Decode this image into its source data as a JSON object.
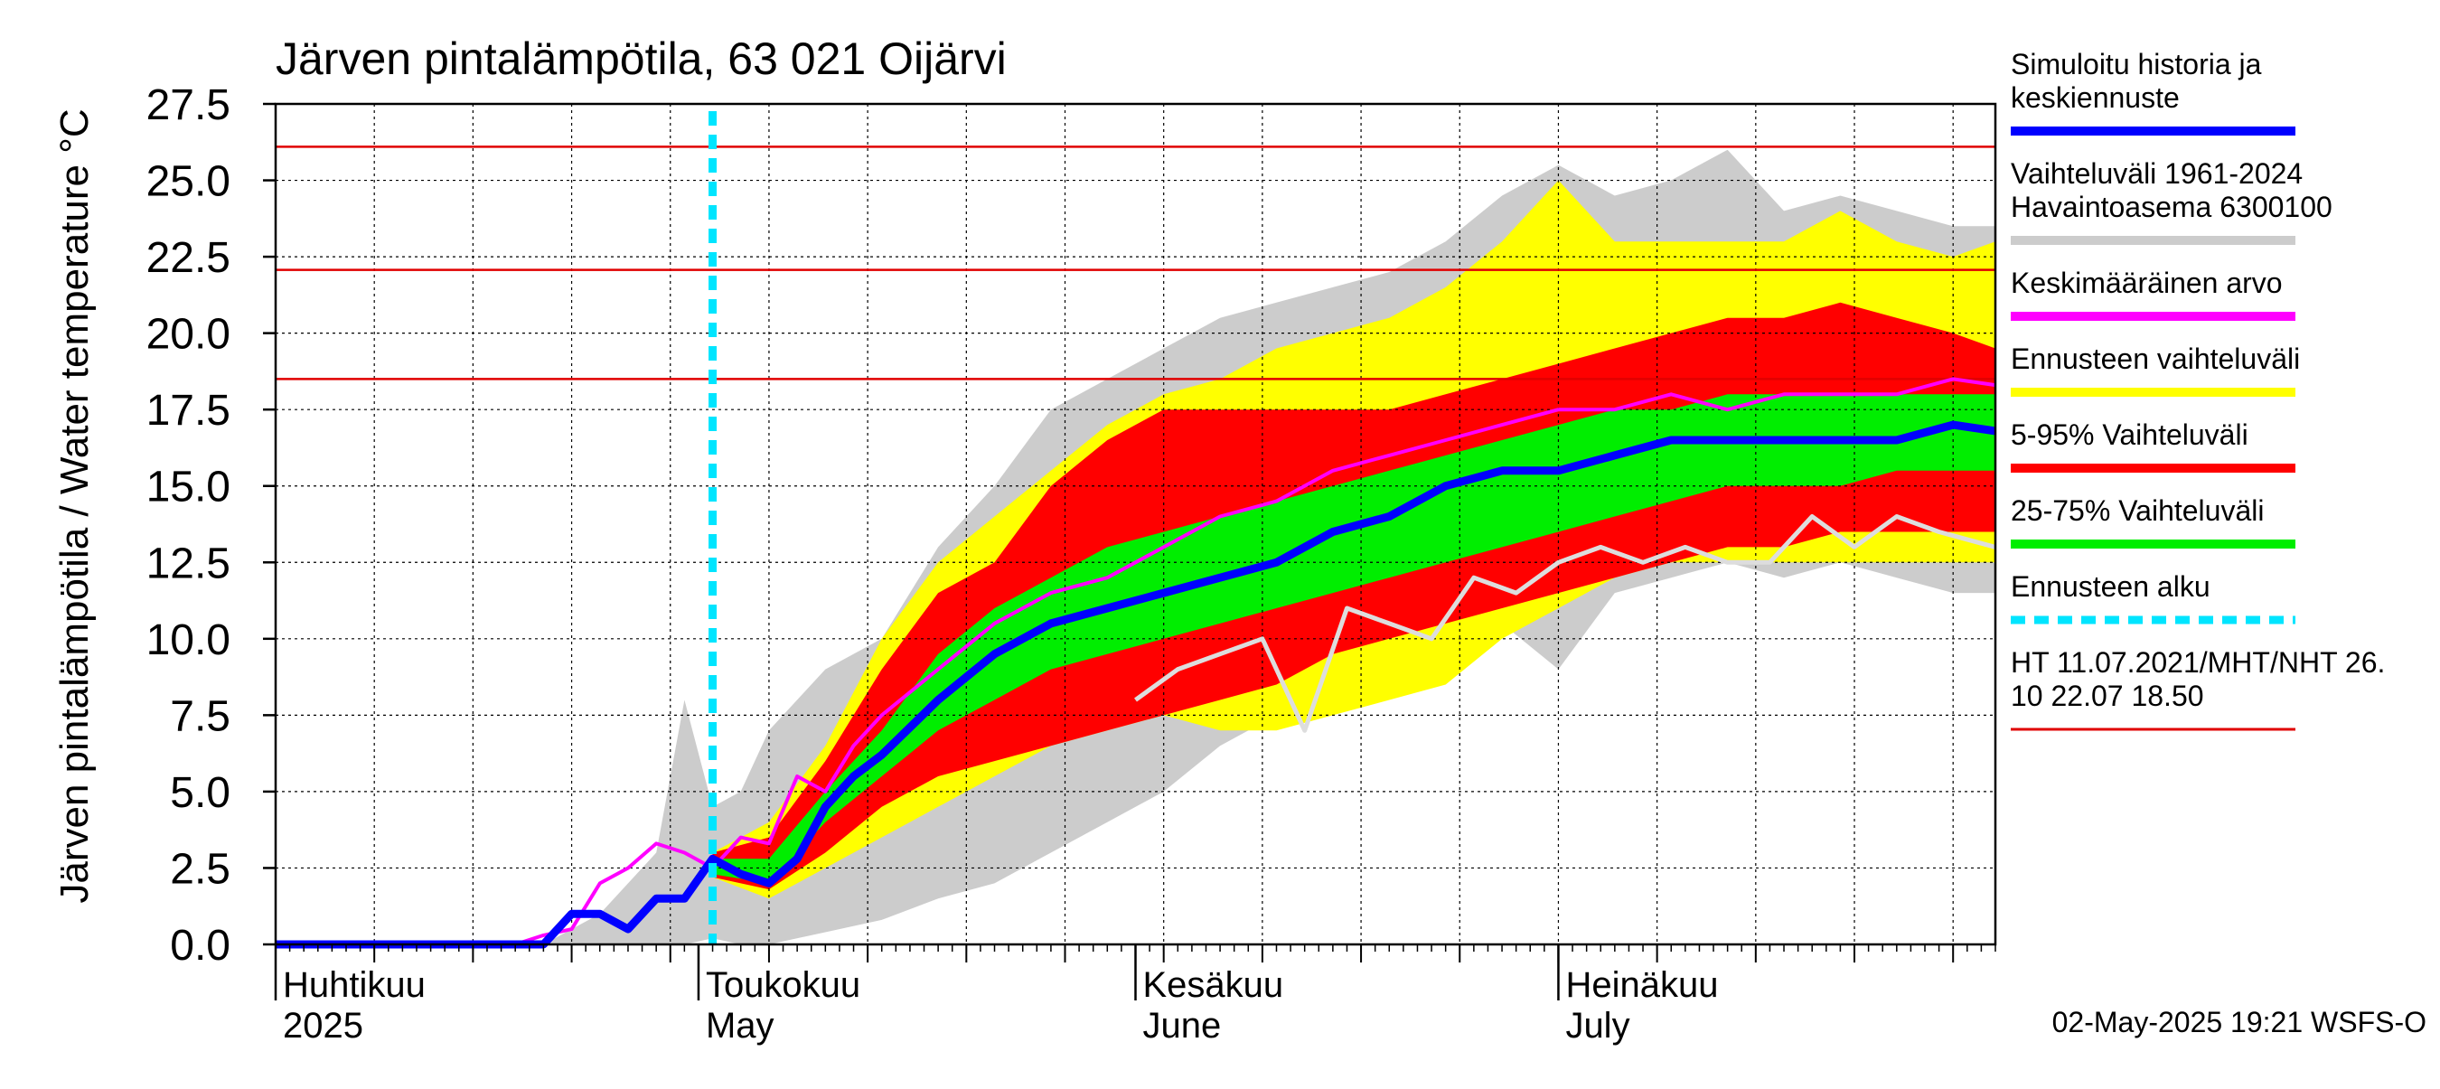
{
  "chart_data": {
    "type": "area",
    "title": "Järven pintalämpötila, 63 021 Oijärvi",
    "ylabel": "Järven pintalämpötila / Water temperature °C",
    "xlabel": "",
    "ylim": [
      0,
      27.5
    ],
    "xlim": [
      "2025-04-01",
      "2025-08-01"
    ],
    "grid": true,
    "legend_position": "right",
    "y_ticks": [
      "0.0",
      "2.5",
      "5.0",
      "7.5",
      "10.0",
      "12.5",
      "15.0",
      "17.5",
      "20.0",
      "22.5",
      "25.0",
      "27.5"
    ],
    "month_labels": [
      {
        "date": "2025-04-01",
        "fi": "Huhtikuu",
        "en": "2025"
      },
      {
        "date": "2025-05-01",
        "fi": "Toukokuu",
        "en": "May"
      },
      {
        "date": "2025-06-01",
        "fi": "Kesäkuu",
        "en": "June"
      },
      {
        "date": "2025-07-01",
        "fi": "Heinäkuu",
        "en": "July"
      }
    ],
    "forecast_start": "2025-05-02",
    "reference_lines": [
      {
        "value": 26.1,
        "color": "#e00000"
      },
      {
        "value": 22.07,
        "color": "#e00000"
      },
      {
        "value": 18.5,
        "color": "#e00000"
      }
    ],
    "bands": {
      "history_range": {
        "color": "#cccccc",
        "x": [
          "2025-04-20",
          "2025-04-24",
          "2025-04-28",
          "2025-04-30",
          "2025-05-02",
          "2025-05-04",
          "2025-05-06",
          "2025-05-10",
          "2025-05-14",
          "2025-05-18",
          "2025-05-22",
          "2025-05-26",
          "2025-05-30",
          "2025-06-03",
          "2025-06-07",
          "2025-06-11",
          "2025-06-15",
          "2025-06-19",
          "2025-06-23",
          "2025-06-27",
          "2025-07-01",
          "2025-07-05",
          "2025-07-09",
          "2025-07-13",
          "2025-07-17",
          "2025-07-21",
          "2025-07-25",
          "2025-07-29",
          "2025-08-01"
        ],
        "lower": [
          0.0,
          0.0,
          0.0,
          0.0,
          0.2,
          0.0,
          0.0,
          0.4,
          0.8,
          1.5,
          2.0,
          3.0,
          4.0,
          5.0,
          6.5,
          7.5,
          8.5,
          9.5,
          10.0,
          10.5,
          9.0,
          11.5,
          12.0,
          12.5,
          12.0,
          12.5,
          12.0,
          11.5,
          11.5
        ],
        "upper": [
          0.0,
          1.0,
          3.0,
          8.0,
          4.5,
          5.0,
          7.0,
          9.0,
          10.0,
          13.0,
          15.0,
          17.5,
          18.5,
          19.5,
          20.5,
          21.0,
          21.5,
          22.0,
          23.0,
          24.5,
          25.5,
          24.5,
          25.0,
          26.0,
          24.0,
          24.5,
          24.0,
          23.5,
          23.5
        ]
      },
      "forecast_range": {
        "color": "#ffff00",
        "x": [
          "2025-05-02",
          "2025-05-06",
          "2025-05-10",
          "2025-05-14",
          "2025-05-18",
          "2025-05-22",
          "2025-05-26",
          "2025-05-30",
          "2025-06-03",
          "2025-06-07",
          "2025-06-11",
          "2025-06-15",
          "2025-06-19",
          "2025-06-23",
          "2025-06-27",
          "2025-07-01",
          "2025-07-05",
          "2025-07-09",
          "2025-07-13",
          "2025-07-17",
          "2025-07-21",
          "2025-07-25",
          "2025-07-29",
          "2025-08-01"
        ],
        "lower": [
          2.2,
          1.5,
          2.5,
          3.5,
          4.5,
          5.5,
          6.5,
          7.0,
          7.5,
          7.0,
          7.0,
          7.5,
          8.0,
          8.5,
          10.0,
          11.0,
          12.0,
          12.5,
          12.5,
          12.5,
          12.5,
          12.5,
          12.5,
          12.5
        ],
        "upper": [
          3.0,
          4.0,
          6.5,
          10.0,
          12.5,
          14.0,
          15.5,
          17.0,
          18.0,
          18.5,
          19.5,
          20.0,
          20.5,
          21.5,
          23.0,
          25.0,
          23.0,
          23.0,
          23.0,
          23.0,
          24.0,
          23.0,
          22.5,
          23.0
        ]
      },
      "p5_95": {
        "color": "#ff0000",
        "x": [
          "2025-05-02",
          "2025-05-06",
          "2025-05-10",
          "2025-05-14",
          "2025-05-18",
          "2025-05-22",
          "2025-05-26",
          "2025-05-30",
          "2025-06-03",
          "2025-06-07",
          "2025-06-11",
          "2025-06-15",
          "2025-06-19",
          "2025-06-23",
          "2025-06-27",
          "2025-07-01",
          "2025-07-05",
          "2025-07-09",
          "2025-07-13",
          "2025-07-17",
          "2025-07-21",
          "2025-07-25",
          "2025-07-29",
          "2025-08-01"
        ],
        "lower": [
          2.2,
          1.8,
          3.0,
          4.5,
          5.5,
          6.0,
          6.5,
          7.0,
          7.5,
          8.0,
          8.5,
          9.5,
          10.0,
          10.5,
          11.0,
          11.5,
          12.0,
          12.5,
          13.0,
          13.0,
          13.5,
          13.5,
          13.5,
          13.5
        ],
        "upper": [
          3.0,
          3.5,
          6.0,
          9.0,
          11.5,
          12.5,
          15.0,
          16.5,
          17.5,
          17.5,
          17.5,
          17.5,
          17.5,
          18.0,
          18.5,
          19.0,
          19.5,
          20.0,
          20.5,
          20.5,
          21.0,
          20.5,
          20.0,
          19.5
        ]
      },
      "p25_75": {
        "color": "#00ee00",
        "x": [
          "2025-05-02",
          "2025-05-06",
          "2025-05-10",
          "2025-05-14",
          "2025-05-18",
          "2025-05-22",
          "2025-05-26",
          "2025-05-30",
          "2025-06-03",
          "2025-06-07",
          "2025-06-11",
          "2025-06-15",
          "2025-06-19",
          "2025-06-23",
          "2025-06-27",
          "2025-07-01",
          "2025-07-05",
          "2025-07-09",
          "2025-07-13",
          "2025-07-17",
          "2025-07-21",
          "2025-07-25",
          "2025-07-29",
          "2025-08-01"
        ],
        "lower": [
          2.3,
          2.0,
          4.0,
          5.5,
          7.0,
          8.0,
          9.0,
          9.5,
          10.0,
          10.5,
          11.0,
          11.5,
          12.0,
          12.5,
          13.0,
          13.5,
          14.0,
          14.5,
          15.0,
          15.0,
          15.0,
          15.5,
          15.5,
          15.5
        ],
        "upper": [
          2.8,
          2.8,
          5.0,
          7.0,
          9.5,
          11.0,
          12.0,
          13.0,
          13.5,
          14.0,
          14.5,
          15.0,
          15.5,
          16.0,
          16.5,
          17.0,
          17.5,
          17.5,
          18.0,
          18.0,
          18.0,
          18.0,
          18.0,
          18.0
        ]
      }
    },
    "series": [
      {
        "name": "Simuloitu historia ja keskiennuste",
        "color": "#0000ff",
        "x": [
          "2025-04-01",
          "2025-04-20",
          "2025-04-22",
          "2025-04-24",
          "2025-04-26",
          "2025-04-28",
          "2025-04-30",
          "2025-05-02",
          "2025-05-04",
          "2025-05-06",
          "2025-05-08",
          "2025-05-10",
          "2025-05-12",
          "2025-05-14",
          "2025-05-18",
          "2025-05-22",
          "2025-05-26",
          "2025-05-30",
          "2025-06-03",
          "2025-06-07",
          "2025-06-11",
          "2025-06-15",
          "2025-06-19",
          "2025-06-23",
          "2025-06-27",
          "2025-07-01",
          "2025-07-05",
          "2025-07-09",
          "2025-07-13",
          "2025-07-17",
          "2025-07-21",
          "2025-07-25",
          "2025-07-29",
          "2025-08-01"
        ],
        "y": [
          0.0,
          0.0,
          1.0,
          1.0,
          0.5,
          1.5,
          1.5,
          2.8,
          2.3,
          2.0,
          2.8,
          4.5,
          5.5,
          6.2,
          8.0,
          9.5,
          10.5,
          11.0,
          11.5,
          12.0,
          12.5,
          13.5,
          14.0,
          15.0,
          15.5,
          15.5,
          16.0,
          16.5,
          16.5,
          16.5,
          16.5,
          16.5,
          17.0,
          16.8
        ]
      },
      {
        "name": "Keskimääräinen arvo",
        "color": "#ff00ff",
        "x": [
          "2025-04-18",
          "2025-04-20",
          "2025-04-22",
          "2025-04-24",
          "2025-04-26",
          "2025-04-28",
          "2025-04-30",
          "2025-05-02",
          "2025-05-04",
          "2025-05-06",
          "2025-05-08",
          "2025-05-10",
          "2025-05-12",
          "2025-05-14",
          "2025-05-18",
          "2025-05-22",
          "2025-05-26",
          "2025-05-30",
          "2025-06-03",
          "2025-06-07",
          "2025-06-11",
          "2025-06-15",
          "2025-06-19",
          "2025-06-23",
          "2025-06-27",
          "2025-07-01",
          "2025-07-05",
          "2025-07-09",
          "2025-07-13",
          "2025-07-17",
          "2025-07-21",
          "2025-07-25",
          "2025-07-29",
          "2025-08-01"
        ],
        "y": [
          0.0,
          0.3,
          0.5,
          2.0,
          2.5,
          3.3,
          3.0,
          2.5,
          3.5,
          3.3,
          5.5,
          5.0,
          6.5,
          7.5,
          9.0,
          10.5,
          11.5,
          12.0,
          13.0,
          14.0,
          14.5,
          15.5,
          16.0,
          16.5,
          17.0,
          17.5,
          17.5,
          18.0,
          17.5,
          18.0,
          18.0,
          18.0,
          18.5,
          18.3
        ]
      },
      {
        "name": "Havaintoasema 6300100",
        "color": "#dddddd",
        "x": [
          "2025-06-01",
          "2025-06-04",
          "2025-06-07",
          "2025-06-10",
          "2025-06-13",
          "2025-06-16",
          "2025-06-19",
          "2025-06-22",
          "2025-06-25",
          "2025-06-28",
          "2025-07-01",
          "2025-07-04",
          "2025-07-07",
          "2025-07-10",
          "2025-07-13",
          "2025-07-16",
          "2025-07-19",
          "2025-07-22",
          "2025-07-25",
          "2025-07-28",
          "2025-08-01"
        ],
        "y": [
          8.0,
          9.0,
          9.5,
          10.0,
          7.0,
          11.0,
          10.5,
          10.0,
          12.0,
          11.5,
          12.5,
          13.0,
          12.5,
          13.0,
          12.5,
          12.5,
          14.0,
          13.0,
          14.0,
          13.5,
          13.0
        ]
      }
    ],
    "legend": [
      {
        "label": "Simuloitu historia ja keskiennuste",
        "color": "#0000ff",
        "style": "solid"
      },
      {
        "label": "Vaihteluväli 1961-2024 Havaintoasema 6300100",
        "color": "#cccccc",
        "style": "solid"
      },
      {
        "label": "Keskimääräinen arvo",
        "color": "#ff00ff",
        "style": "solid"
      },
      {
        "label": "Ennusteen vaihteluväli",
        "color": "#ffff00",
        "style": "solid"
      },
      {
        "label": "5-95% Vaihteluväli",
        "color": "#ff0000",
        "style": "solid"
      },
      {
        "label": "25-75% Vaihteluväli",
        "color": "#00ee00",
        "style": "solid"
      },
      {
        "label": "Ennusteen alku",
        "color": "#00e5ff",
        "style": "dashed"
      },
      {
        "label": "HT 11.07.2021/MHT/NHT 26.10 22.07 18.50",
        "color": "#e00000",
        "style": "solid"
      }
    ],
    "legend_text_lines": [
      [
        "Simuloitu historia ja",
        "keskiennuste"
      ],
      [
        "Vaihteluväli 1961-2024",
        " Havaintoasema 6300100"
      ],
      [
        "Keskimääräinen arvo"
      ],
      [
        "Ennusteen vaihteluväli"
      ],
      [
        "5-95% Vaihteluväli"
      ],
      [
        "25-75% Vaihteluväli"
      ],
      [
        "Ennusteen alku"
      ],
      [
        "HT 11.07.2021/MHT/NHT 26.",
        "10 22.07 18.50"
      ]
    ],
    "footer": "02-May-2025 19:21 WSFS-O"
  }
}
